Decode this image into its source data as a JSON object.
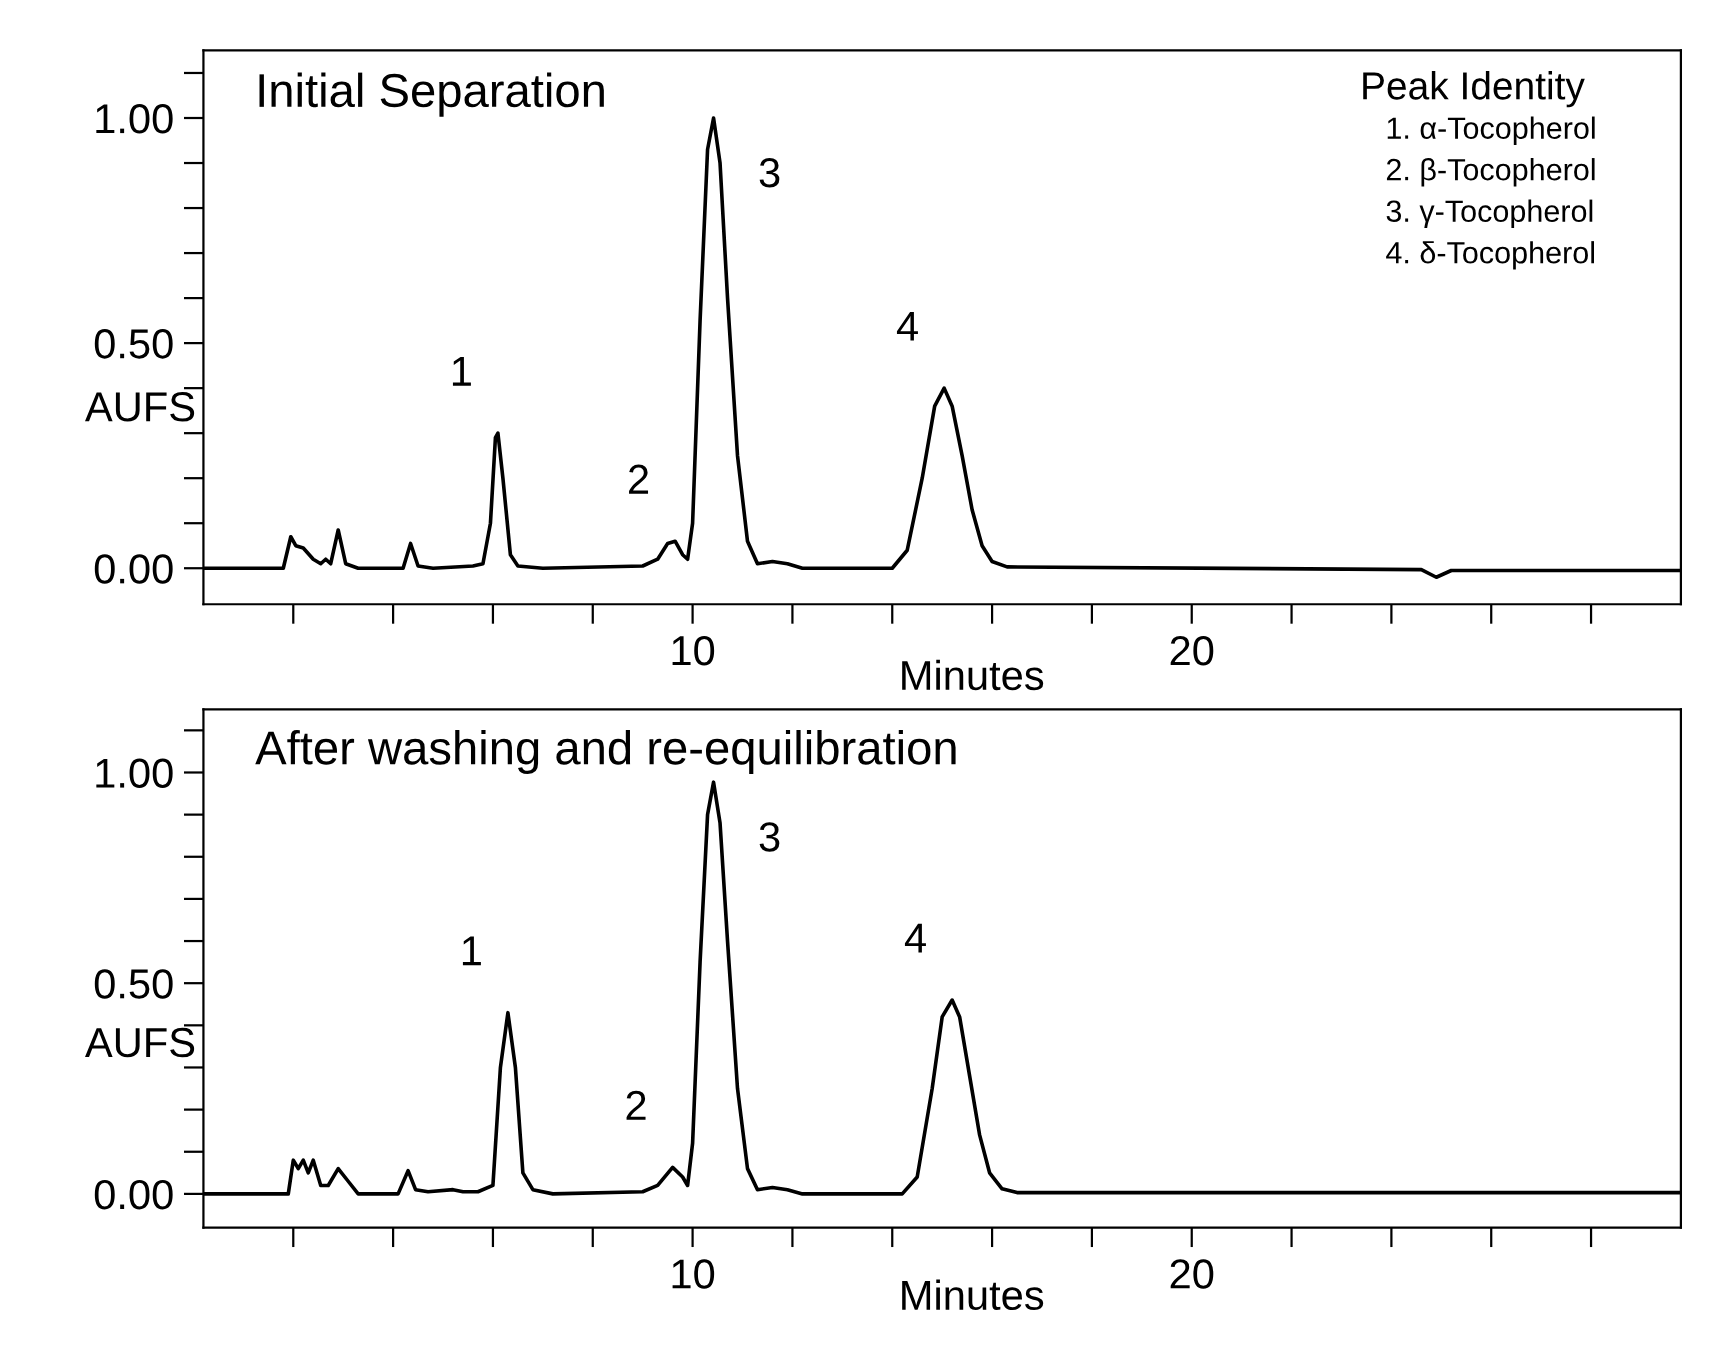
{
  "chart_data": [
    {
      "type": "line",
      "title": "Initial Separation",
      "xlabel": "Minutes",
      "ylabel": "AUFS",
      "xlim": [
        0.2,
        29.8
      ],
      "ylim": [
        -0.08,
        1.15
      ],
      "xticks": [
        {
          "value": 2,
          "label": null
        },
        {
          "value": 4,
          "label": null
        },
        {
          "value": 6,
          "label": null
        },
        {
          "value": 8,
          "label": null
        },
        10,
        {
          "value": 12,
          "label": null
        },
        {
          "value": 14,
          "label": null
        },
        {
          "value": 16,
          "label": null
        },
        {
          "value": 18,
          "label": null
        },
        20,
        {
          "value": 22,
          "label": null
        },
        {
          "value": 24,
          "label": null
        },
        {
          "value": 26,
          "label": null
        },
        {
          "value": 28,
          "label": null
        }
      ],
      "yticks": [
        {
          "value": 0,
          "label": "0.00"
        },
        {
          "value": 0.1,
          "label": null
        },
        {
          "value": 0.2,
          "label": null
        },
        {
          "value": 0.3,
          "label": null
        },
        {
          "value": 0.4,
          "label": null
        },
        {
          "value": 0.5,
          "label": "0.50"
        },
        {
          "value": 0.6,
          "label": null
        },
        {
          "value": 0.7,
          "label": null
        },
        {
          "value": 0.8,
          "label": null
        },
        {
          "value": 0.9,
          "label": null
        },
        {
          "value": 1.0,
          "label": "1.00"
        },
        {
          "value": 1.1,
          "label": null
        }
      ],
      "series": [
        {
          "color": "#000000",
          "x": [
            0.2,
            1.8,
            1.95,
            2.05,
            2.2,
            2.4,
            2.55,
            2.65,
            2.75,
            2.9,
            3.05,
            3.3,
            4.2,
            4.35,
            4.5,
            4.8,
            5.6,
            5.8,
            5.95,
            6.05,
            6.1,
            6.2,
            6.35,
            6.5,
            7.0,
            9.0,
            9.3,
            9.5,
            9.65,
            9.8,
            9.9,
            10.0,
            10.15,
            10.3,
            10.42,
            10.55,
            10.7,
            10.9,
            11.1,
            11.3,
            11.6,
            11.9,
            12.2,
            14.0,
            14.3,
            14.6,
            14.85,
            15.04,
            15.2,
            15.4,
            15.6,
            15.8,
            16.0,
            16.3,
            24.6,
            24.9,
            25.2,
            29.8
          ],
          "values": [
            0,
            0,
            0.07,
            0.05,
            0.045,
            0.02,
            0.01,
            0.02,
            0.01,
            0.085,
            0.01,
            0,
            0,
            0.055,
            0.005,
            0,
            0.005,
            0.01,
            0.1,
            0.29,
            0.3,
            0.2,
            0.03,
            0.005,
            0,
            0.005,
            0.02,
            0.055,
            0.06,
            0.03,
            0.02,
            0.1,
            0.55,
            0.93,
            1.0,
            0.9,
            0.6,
            0.25,
            0.06,
            0.01,
            0.015,
            0.01,
            0,
            0,
            0.04,
            0.2,
            0.36,
            0.4,
            0.36,
            0.25,
            0.13,
            0.05,
            0.015,
            0.003,
            -0.003,
            -0.02,
            -0.005,
            -0.005
          ]
        }
      ],
      "annotations": [
        {
          "text": "1",
          "x": 6.1,
          "y": 0.3
        },
        {
          "text": "2",
          "x": 9.65,
          "y": 0.06
        },
        {
          "text": "3",
          "x": 10.42,
          "y": 1.0
        },
        {
          "text": "4",
          "x": 15.04,
          "y": 0.4
        },
        "Peak Identity",
        "1. α-Tocopherol",
        "2. β-Tocopherol",
        "3. γ-Tocopherol",
        "4. δ-Tocopherol"
      ]
    },
    {
      "type": "line",
      "title": "After washing and re-equilibration",
      "xlabel": "Minutes",
      "ylabel": "AUFS",
      "xlim": [
        0.2,
        29.8
      ],
      "ylim": [
        -0.08,
        1.15
      ],
      "xticks": [
        {
          "value": 2,
          "label": null
        },
        {
          "value": 4,
          "label": null
        },
        {
          "value": 6,
          "label": null
        },
        {
          "value": 8,
          "label": null
        },
        10,
        {
          "value": 12,
          "label": null
        },
        {
          "value": 14,
          "label": null
        },
        {
          "value": 16,
          "label": null
        },
        {
          "value": 18,
          "label": null
        },
        20,
        {
          "value": 22,
          "label": null
        },
        {
          "value": 24,
          "label": null
        },
        {
          "value": 26,
          "label": null
        },
        {
          "value": 28,
          "label": null
        }
      ],
      "yticks": [
        {
          "value": 0,
          "label": "0.00"
        },
        {
          "value": 0.1,
          "label": null
        },
        {
          "value": 0.2,
          "label": null
        },
        {
          "value": 0.3,
          "label": null
        },
        {
          "value": 0.4,
          "label": null
        },
        {
          "value": 0.5,
          "label": "0.50"
        },
        {
          "value": 0.6,
          "label": null
        },
        {
          "value": 0.7,
          "label": null
        },
        {
          "value": 0.8,
          "label": null
        },
        {
          "value": 0.9,
          "label": null
        },
        {
          "value": 1.0,
          "label": "1.00"
        },
        {
          "value": 1.1,
          "label": null
        }
      ],
      "series": [
        {
          "color": "#000000",
          "x": [
            0.2,
            1.9,
            2.0,
            2.1,
            2.2,
            2.3,
            2.4,
            2.55,
            2.7,
            2.9,
            3.1,
            3.3,
            4.1,
            4.3,
            4.45,
            4.7,
            5.2,
            5.4,
            5.7,
            6.0,
            6.15,
            6.3,
            6.45,
            6.6,
            6.8,
            7.2,
            9.0,
            9.3,
            9.6,
            9.8,
            9.9,
            10.0,
            10.15,
            10.3,
            10.42,
            10.55,
            10.7,
            10.9,
            11.1,
            11.3,
            11.6,
            11.9,
            12.2,
            14.2,
            14.5,
            14.8,
            15.0,
            15.2,
            15.35,
            15.55,
            15.75,
            15.95,
            16.2,
            16.5,
            29.8
          ],
          "values": [
            0,
            0,
            0.08,
            0.06,
            0.08,
            0.05,
            0.08,
            0.02,
            0.02,
            0.06,
            0.03,
            0,
            0,
            0.055,
            0.01,
            0.005,
            0.01,
            0.005,
            0.005,
            0.02,
            0.3,
            0.43,
            0.3,
            0.05,
            0.01,
            0,
            0.005,
            0.02,
            0.063,
            0.04,
            0.02,
            0.12,
            0.55,
            0.9,
            0.977,
            0.88,
            0.6,
            0.25,
            0.06,
            0.01,
            0.015,
            0.01,
            0,
            0,
            0.04,
            0.25,
            0.42,
            0.46,
            0.42,
            0.28,
            0.14,
            0.05,
            0.012,
            0.003,
            0.003
          ]
        }
      ],
      "annotations": [
        {
          "text": "1",
          "x": 6.3,
          "y": 0.43
        },
        {
          "text": "2",
          "x": 9.6,
          "y": 0.063
        },
        {
          "text": "3",
          "x": 10.42,
          "y": 0.977
        },
        {
          "text": "4",
          "x": 15.2,
          "y": 0.46
        }
      ]
    }
  ]
}
